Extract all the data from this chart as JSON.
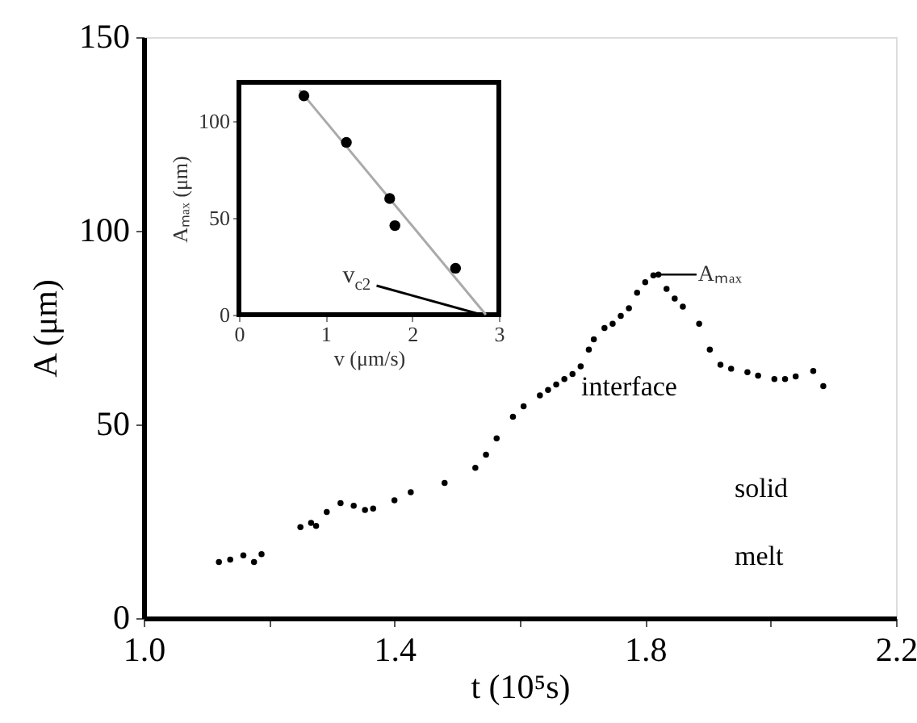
{
  "chart_data": [
    {
      "type": "scatter",
      "xlabel": "t (10⁵s)",
      "ylabel": "A (μm)",
      "color": "#000000",
      "marker": "circle",
      "x": [
        1.12,
        1.138,
        1.159,
        1.176,
        1.188,
        1.25,
        1.267,
        1.275,
        1.292,
        1.314,
        1.335,
        1.353,
        1.366,
        1.4,
        1.426,
        1.48,
        1.529,
        1.546,
        1.563,
        1.589,
        1.606,
        1.632,
        1.645,
        1.658,
        1.671,
        1.684,
        1.697,
        1.71,
        1.718,
        1.735,
        1.748,
        1.761,
        1.774,
        1.787,
        1.8,
        1.813,
        1.821,
        1.834,
        1.847,
        1.86,
        1.886,
        1.903,
        1.92,
        1.937,
        1.963,
        1.98,
        2.006,
        2.023,
        2.04,
        2.068,
        2.084
      ],
      "values": [
        14.5,
        15.1,
        16.2,
        14.5,
        16.5,
        23.5,
        24.6,
        23.8,
        27.4,
        29.7,
        29,
        27.9,
        28.3,
        30.4,
        32.5,
        34.9,
        38.8,
        42.2,
        46.4,
        52,
        54.7,
        57.5,
        58.9,
        60.3,
        61.7,
        63,
        65,
        69.3,
        72,
        74.9,
        76,
        78,
        80,
        84,
        86.7,
        88.5,
        88.7,
        85,
        82.5,
        80.4,
        76,
        69.3,
        65.4,
        64.4,
        63.5,
        62.6,
        61.7,
        61.7,
        62.4,
        63.8,
        59.9
      ],
      "xlim": [
        1.0,
        2.2
      ],
      "ylim": [
        0,
        150
      ],
      "xticks": [
        {
          "value": 1.0,
          "label": "1.0"
        },
        {
          "value": 1.2,
          "label": null
        },
        {
          "value": 1.4,
          "label": "1.4"
        },
        {
          "value": 1.6,
          "label": null
        },
        {
          "value": 1.8,
          "label": "1.8"
        },
        {
          "value": 2.0,
          "label": null
        },
        {
          "value": 2.2,
          "label": "2.2"
        }
      ],
      "yticks": [
        0,
        50,
        100,
        150
      ],
      "annotations": [
        {
          "text": "Aₘₐₓ",
          "x": 1.82,
          "y": 88.7
        },
        "interface",
        "solid",
        "melt"
      ]
    },
    {
      "type": "scatter",
      "xlabel": "v (μm/s)",
      "ylabel": "Aₘₐₓ (μm)",
      "series": [
        {
          "type": "scatter",
          "color": "#000000",
          "marker": "circle",
          "x": [
            0.75,
            1.24,
            1.74,
            1.8,
            2.5
          ],
          "values": [
            113,
            89,
            60,
            46,
            24
          ]
        },
        {
          "type": "line",
          "color": "#aaaaaa",
          "x": [
            0.7,
            2.85
          ],
          "values": [
            116,
            0
          ]
        }
      ],
      "xlim": [
        0,
        3
      ],
      "ylim": [
        0,
        120
      ],
      "xticks": [
        0,
        1,
        2,
        3
      ],
      "yticks": [
        0,
        50,
        100
      ],
      "annotations": [
        {
          "text": "v$_{c2}$",
          "x": 2.8,
          "y": 0
        }
      ]
    }
  ]
}
